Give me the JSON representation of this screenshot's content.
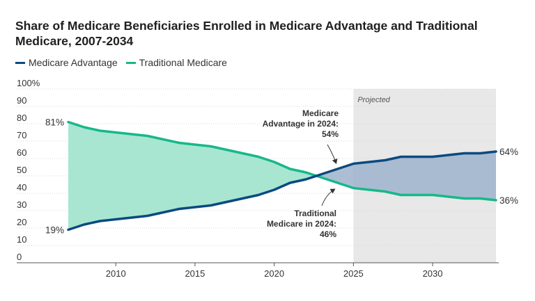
{
  "chart_data": {
    "type": "line",
    "title": "Share of Medicare Beneficiaries Enrolled in Medicare Advantage and Traditional Medicare, 2007-2034",
    "xlabel": "",
    "ylabel": "",
    "xlim": [
      2007,
      2034
    ],
    "ylim": [
      0,
      100
    ],
    "x_ticks": [
      2010,
      2015,
      2020,
      2025,
      2030
    ],
    "y_ticks": [
      0,
      10,
      20,
      30,
      40,
      50,
      60,
      70,
      80,
      90,
      100
    ],
    "y_tick_labels": [
      "0",
      "10",
      "20",
      "30",
      "40",
      "50",
      "60",
      "70",
      "80",
      "90",
      "100%"
    ],
    "x": [
      2007,
      2008,
      2009,
      2010,
      2011,
      2012,
      2013,
      2014,
      2015,
      2016,
      2017,
      2018,
      2019,
      2020,
      2021,
      2022,
      2023,
      2024,
      2025,
      2026,
      2027,
      2028,
      2029,
      2030,
      2031,
      2032,
      2033,
      2034
    ],
    "series": [
      {
        "name": "Medicare Advantage",
        "color": "#0b4a80",
        "values": [
          19,
          22,
          24,
          25,
          26,
          27,
          29,
          31,
          32,
          33,
          35,
          37,
          39,
          42,
          46,
          48,
          51,
          54,
          57,
          58,
          59,
          61,
          61,
          61,
          62,
          63,
          63,
          64
        ]
      },
      {
        "name": "Traditional Medicare",
        "color": "#17b889",
        "values": [
          81,
          78,
          76,
          75,
          74,
          73,
          71,
          69,
          68,
          67,
          65,
          63,
          61,
          58,
          54,
          52,
          49,
          46,
          43,
          42,
          41,
          39,
          39,
          39,
          38,
          37,
          37,
          36
        ]
      }
    ],
    "projected_region": {
      "from": 2025,
      "to": 2034,
      "label": "Projected"
    },
    "end_labels": {
      "ma_start": "19%",
      "tm_start": "81%",
      "ma_end": "64%",
      "tm_end": "36%"
    },
    "annotations": [
      {
        "series": "Medicare Advantage",
        "year": 2024,
        "lines": [
          "Medicare",
          "Advantage in 2024:",
          "54%"
        ]
      },
      {
        "series": "Traditional Medicare",
        "year": 2024,
        "lines": [
          "Traditional",
          "Medicare in 2024:",
          "46%"
        ]
      }
    ],
    "fill_colors": {
      "tm_above": "#a8e6d2",
      "ma_above": "#9db3cc",
      "projected_bg": "#e8e8e8"
    }
  }
}
